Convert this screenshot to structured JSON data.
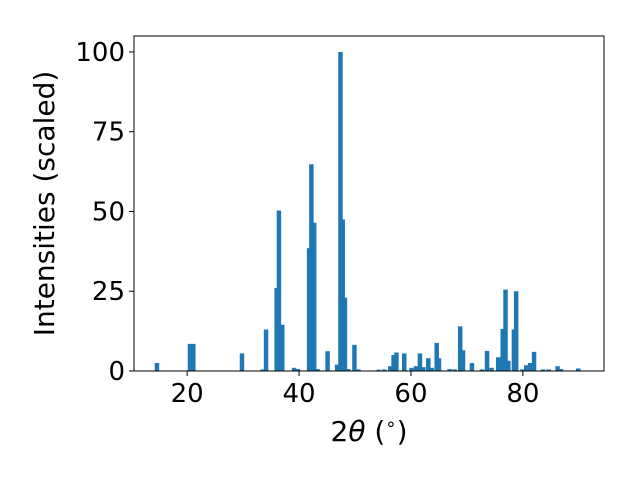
{
  "chart_data": {
    "type": "bar",
    "xlabel_parts": [
      "2",
      "θ",
      " (",
      "∘",
      ")"
    ],
    "ylabel": "Intensities (scaled)",
    "xlim": [
      10.5,
      94.5
    ],
    "ylim": [
      0,
      105
    ],
    "x_ticks": [
      20,
      40,
      60,
      80
    ],
    "x_tick_labels": [
      "20",
      "40",
      "60",
      "80"
    ],
    "y_ticks": [
      0,
      25,
      50,
      75,
      100
    ],
    "y_tick_labels": [
      "0",
      "25",
      "50",
      "75",
      "100"
    ],
    "grid": false,
    "legend": false,
    "bar_color": "#1f77b4",
    "bar_width": 0.8,
    "x": [
      14.6,
      20.5,
      21.1,
      29.8,
      33.5,
      34.1,
      36.0,
      36.4,
      37.0,
      39.1,
      39.8,
      41.8,
      42.2,
      42.7,
      43.3,
      45.1,
      46.8,
      47.4,
      47.8,
      48.2,
      48.8,
      49.9,
      50.6,
      54.2,
      55.2,
      56.3,
      56.9,
      57.4,
      58.8,
      60.1,
      60.9,
      61.6,
      62.2,
      63.1,
      63.7,
      64.6,
      65.0,
      66.9,
      67.8,
      68.8,
      69.3,
      70.9,
      72.7,
      73.6,
      74.4,
      75.6,
      76.4,
      76.9,
      77.4,
      78.4,
      78.8,
      79.9,
      80.6,
      81.3,
      82.0,
      83.6,
      84.6,
      86.2,
      86.8,
      89.9
    ],
    "values": [
      2.5,
      8.5,
      8.5,
      5.5,
      0.5,
      13,
      26,
      50.3,
      14.5,
      1,
      0.6,
      38.5,
      64.8,
      46.5,
      0.6,
      6.2,
      2,
      100,
      47.5,
      23,
      0.6,
      8.2,
      0.5,
      0.4,
      0.5,
      1.5,
      5,
      5.8,
      5.5,
      1,
      1.5,
      5.5,
      1.2,
      4,
      1,
      8.8,
      4,
      0.6,
      0.5,
      14,
      6.5,
      2.5,
      0.5,
      6.3,
      1,
      4.3,
      13.2,
      25.5,
      3.2,
      13,
      25,
      0.5,
      1.8,
      2.5,
      6,
      0.5,
      0.5,
      1.5,
      0.6,
      0.8
    ]
  }
}
